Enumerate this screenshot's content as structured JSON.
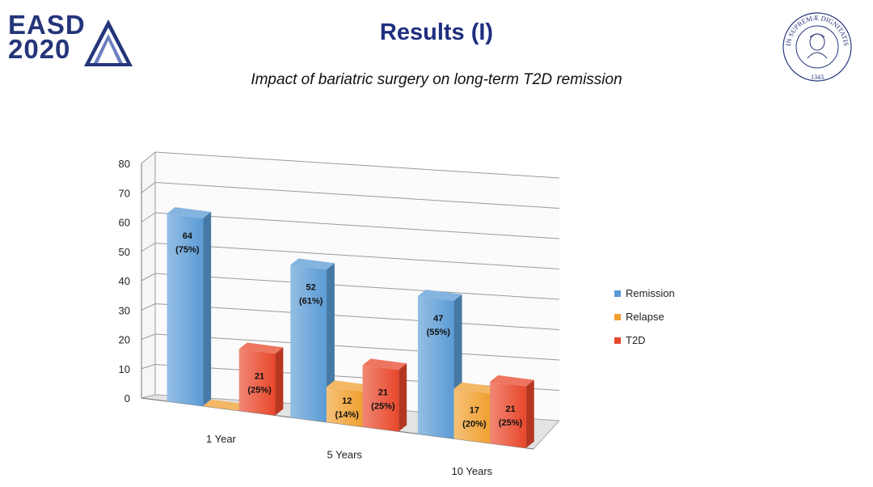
{
  "slide": {
    "logo": {
      "line1": "EASD",
      "line2": "2020"
    },
    "seal": {
      "text": "IN SUPREMÆ DIGNITATIS",
      "year": "1343"
    },
    "title": "Results (I)",
    "subtitle": "Impact of bariatric surgery on long-term T2D remission"
  },
  "colors": {
    "title": "#1f2f80",
    "logo": "#24357a"
  },
  "chart_data": {
    "type": "bar",
    "categories": [
      "1 Year",
      "5 Years",
      "10 Years"
    ],
    "series": [
      {
        "name": "Remission",
        "color": "#5b9bd5",
        "values": [
          64,
          52,
          47
        ],
        "labels": [
          "64\n(75%)",
          "52\n(61%)",
          "47\n(55%)"
        ]
      },
      {
        "name": "Relapse",
        "color": "#f0a030",
        "values": [
          0,
          12,
          17
        ],
        "labels": [
          "",
          "12\n(14%)",
          "17\n(20%)"
        ]
      },
      {
        "name": "T2D",
        "color": "#e8472a",
        "values": [
          21,
          21,
          21
        ],
        "labels": [
          "21\n(25%)",
          "21\n(25%)",
          "21\n(25%)"
        ]
      }
    ],
    "ylim": [
      0,
      80
    ],
    "yticks": [
      "0",
      "10",
      "20",
      "30",
      "40",
      "50",
      "60",
      "70",
      "80"
    ],
    "grid": true,
    "legend": "right",
    "style": "3d"
  }
}
